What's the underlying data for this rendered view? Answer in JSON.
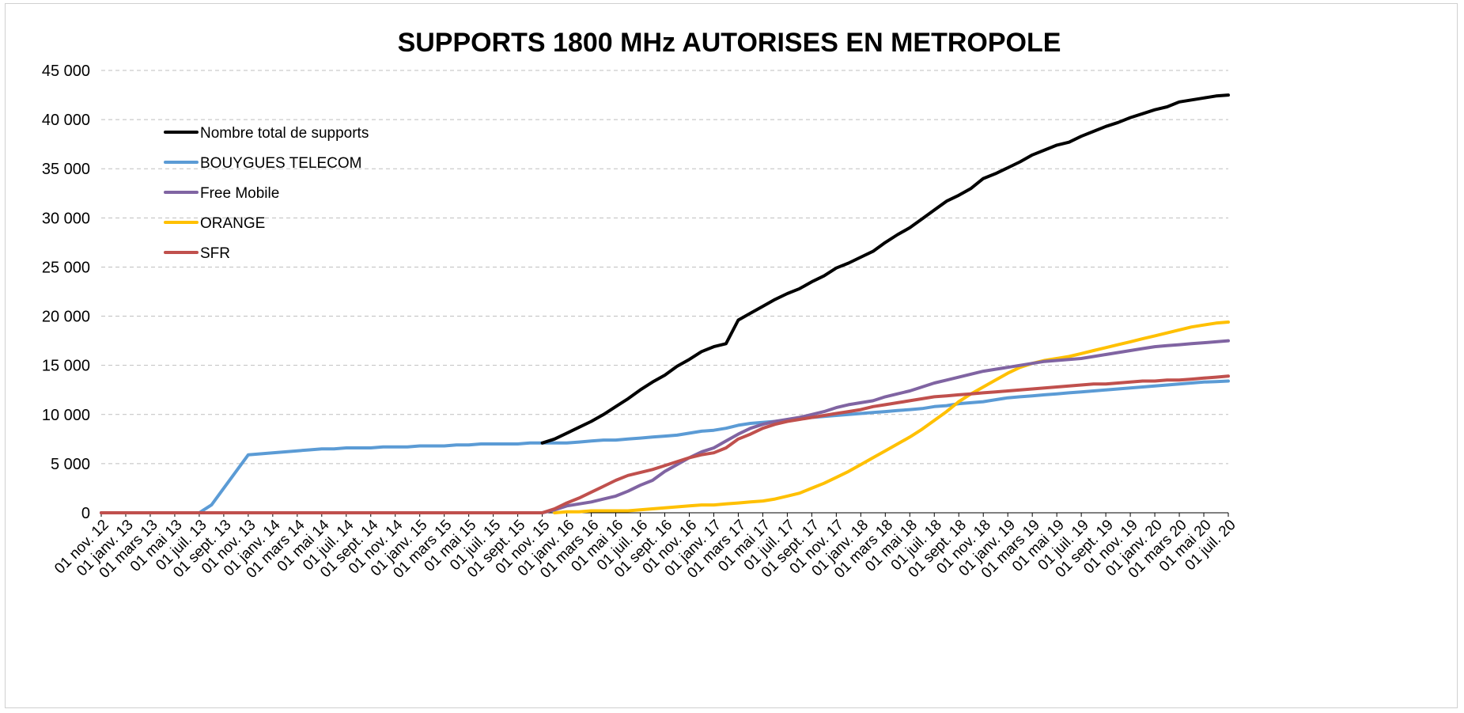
{
  "chart_data": {
    "type": "line",
    "title": "SUPPORTS 1800 MHz AUTORISES EN METROPOLE",
    "xlabel": "",
    "ylabel": "",
    "ylim": [
      0,
      45000
    ],
    "yticks": [
      0,
      5000,
      10000,
      15000,
      20000,
      25000,
      30000,
      35000,
      40000,
      45000
    ],
    "ytick_labels": [
      "0",
      "5 000",
      "10 000",
      "15 000",
      "20 000",
      "25 000",
      "30 000",
      "35 000",
      "40 000",
      "45 000"
    ],
    "grid": true,
    "legend_position": "top-left",
    "x": [
      "01 nov. 12",
      "01 déc. 12",
      "01 janv. 13",
      "01 févr. 13",
      "01 mars 13",
      "01 avr. 13",
      "01 mai 13",
      "01 juin 13",
      "01 juil. 13",
      "01 août 13",
      "01 sept. 13",
      "01 oct. 13",
      "01 nov. 13",
      "01 déc. 13",
      "01 janv. 14",
      "01 févr. 14",
      "01 mars 14",
      "01 avr. 14",
      "01 mai 14",
      "01 juin 14",
      "01 juil. 14",
      "01 août 14",
      "01 sept. 14",
      "01 oct. 14",
      "01 nov. 14",
      "01 déc. 14",
      "01 janv. 15",
      "01 févr. 15",
      "01 mars 15",
      "01 avr. 15",
      "01 mai 15",
      "01 juin 15",
      "01 juil. 15",
      "01 août 15",
      "01 sept. 15",
      "01 oct. 15",
      "01 nov. 15",
      "01 déc. 15",
      "01 janv. 16",
      "01 févr. 16",
      "01 mars 16",
      "01 avr. 16",
      "01 mai 16",
      "01 juin 16",
      "01 juil. 16",
      "01 août 16",
      "01 sept. 16",
      "01 oct. 16",
      "01 nov. 16",
      "01 déc. 16",
      "01 janv. 17",
      "01 févr. 17",
      "01 mars 17",
      "01 avr. 17",
      "01 mai 17",
      "01 juin 17",
      "01 juil. 17",
      "01 août 17",
      "01 sept. 17",
      "01 oct. 17",
      "01 nov. 17",
      "01 déc. 17",
      "01 janv. 18",
      "01 févr. 18",
      "01 mars 18",
      "01 avr. 18",
      "01 mai 18",
      "01 juin 18",
      "01 juil. 18",
      "01 août 18",
      "01 sept. 18",
      "01 oct. 18",
      "01 nov. 18",
      "01 déc. 18",
      "01 janv. 19",
      "01 févr. 19",
      "01 mars 19",
      "01 avr. 19",
      "01 mai 19",
      "01 juin 19",
      "01 juil. 19",
      "01 août 19",
      "01 sept. 19",
      "01 oct. 19",
      "01 nov. 19",
      "01 déc. 19",
      "01 janv. 20",
      "01 févr. 20",
      "01 mars 20",
      "01 avr. 20",
      "01 mai 20",
      "01 juin 20",
      "01 juil. 20"
    ],
    "x_tick_labels": [
      "01 nov. 12",
      "01 janv. 13",
      "01 mars 13",
      "01 mai 13",
      "01 juil. 13",
      "01 sept. 13",
      "01 nov. 13",
      "01 janv. 14",
      "01 mars 14",
      "01 mai 14",
      "01 juil. 14",
      "01 sept. 14",
      "01 nov. 14",
      "01 janv. 15",
      "01 mars 15",
      "01 mai 15",
      "01 juil. 15",
      "01 sept. 15",
      "01 nov. 15",
      "01 janv. 16",
      "01 mars 16",
      "01 mai 16",
      "01 juil. 16",
      "01 sept. 16",
      "01 nov. 16",
      "01 janv. 17",
      "01 mars 17",
      "01 mai 17",
      "01 juil. 17",
      "01 sept. 17",
      "01 nov. 17",
      "01 janv. 18",
      "01 mars 18",
      "01 mai 18",
      "01 juil. 18",
      "01 sept. 18",
      "01 nov. 18",
      "01 janv. 19",
      "01 mars 19",
      "01 mai 19",
      "01 juil. 19",
      "01 sept. 19",
      "01 nov. 19",
      "01 janv. 20",
      "01 mars 20",
      "01 mai 20",
      "01 juil. 20"
    ],
    "series": [
      {
        "name": "Nombre total de supports",
        "color": "#000000",
        "values": [
          0,
          0,
          0,
          0,
          0,
          0,
          0,
          0,
          0,
          0,
          0,
          0,
          0,
          0,
          0,
          0,
          0,
          0,
          0,
          0,
          0,
          0,
          0,
          0,
          0,
          0,
          0,
          0,
          0,
          0,
          0,
          0,
          0,
          0,
          0,
          0,
          7100,
          7500,
          8100,
          8700,
          9300,
          10000,
          10800,
          11600,
          12500,
          13300,
          14000,
          14900,
          15600,
          16400,
          16900,
          17200,
          19600,
          20300,
          21000,
          21700,
          22300,
          22800,
          23500,
          24100,
          24900,
          25400,
          26000,
          26600,
          27500,
          28300,
          29000,
          29900,
          30800,
          31700,
          32300,
          33000,
          34000,
          34500,
          35100,
          35700,
          36400,
          36900,
          37400,
          37700,
          38300,
          38800,
          39300,
          39700,
          40200,
          40600,
          41000,
          41300,
          41800,
          42000,
          42200,
          42400,
          42500
        ],
        "visible_from_index": 36
      },
      {
        "name": "BOUYGUES TELECOM",
        "color": "#5b9bd5",
        "values": [
          0,
          0,
          0,
          0,
          0,
          0,
          0,
          0,
          0,
          800,
          2500,
          4200,
          5900,
          6000,
          6100,
          6200,
          6300,
          6400,
          6500,
          6500,
          6600,
          6600,
          6600,
          6700,
          6700,
          6700,
          6800,
          6800,
          6800,
          6900,
          6900,
          7000,
          7000,
          7000,
          7000,
          7100,
          7100,
          7100,
          7100,
          7200,
          7300,
          7400,
          7400,
          7500,
          7600,
          7700,
          7800,
          7900,
          8100,
          8300,
          8400,
          8600,
          8900,
          9100,
          9200,
          9300,
          9400,
          9600,
          9700,
          9800,
          9900,
          10000,
          10100,
          10200,
          10300,
          10400,
          10500,
          10600,
          10800,
          10900,
          11100,
          11200,
          11300,
          11500,
          11700,
          11800,
          11900,
          12000,
          12100,
          12200,
          12300,
          12400,
          12500,
          12600,
          12700,
          12800,
          12900,
          13000,
          13100,
          13200,
          13300,
          13350,
          13400
        ]
      },
      {
        "name": "Free Mobile",
        "color": "#8064a2",
        "values": [
          0,
          0,
          0,
          0,
          0,
          0,
          0,
          0,
          0,
          0,
          0,
          0,
          0,
          0,
          0,
          0,
          0,
          0,
          0,
          0,
          0,
          0,
          0,
          0,
          0,
          0,
          0,
          0,
          0,
          0,
          0,
          0,
          0,
          0,
          0,
          0,
          0,
          300,
          700,
          900,
          1100,
          1400,
          1700,
          2200,
          2800,
          3300,
          4200,
          4900,
          5600,
          6200,
          6600,
          7300,
          8000,
          8600,
          9000,
          9300,
          9500,
          9700,
          10000,
          10300,
          10700,
          11000,
          11200,
          11400,
          11800,
          12100,
          12400,
          12800,
          13200,
          13500,
          13800,
          14100,
          14400,
          14600,
          14800,
          15000,
          15200,
          15400,
          15500,
          15600,
          15700,
          15900,
          16100,
          16300,
          16500,
          16700,
          16900,
          17000,
          17100,
          17200,
          17300,
          17400,
          17500
        ]
      },
      {
        "name": "ORANGE",
        "color": "#ffc000",
        "values": [
          0,
          0,
          0,
          0,
          0,
          0,
          0,
          0,
          0,
          0,
          0,
          0,
          0,
          0,
          0,
          0,
          0,
          0,
          0,
          0,
          0,
          0,
          0,
          0,
          0,
          0,
          0,
          0,
          0,
          0,
          0,
          0,
          0,
          0,
          0,
          0,
          0,
          0,
          100,
          100,
          200,
          200,
          200,
          200,
          300,
          400,
          500,
          600,
          700,
          800,
          800,
          900,
          1000,
          1100,
          1200,
          1400,
          1700,
          2000,
          2500,
          3000,
          3600,
          4200,
          4900,
          5600,
          6300,
          7000,
          7700,
          8500,
          9400,
          10300,
          11300,
          12100,
          12800,
          13500,
          14200,
          14800,
          15200,
          15500,
          15700,
          15900,
          16200,
          16500,
          16800,
          17100,
          17400,
          17700,
          18000,
          18300,
          18600,
          18900,
          19100,
          19300,
          19400
        ],
        "visible_from_index": 37
      },
      {
        "name": "SFR",
        "color": "#c0504d",
        "values": [
          0,
          0,
          0,
          0,
          0,
          0,
          0,
          0,
          0,
          0,
          0,
          0,
          0,
          0,
          0,
          0,
          0,
          0,
          0,
          0,
          0,
          0,
          0,
          0,
          0,
          0,
          0,
          0,
          0,
          0,
          0,
          0,
          0,
          0,
          0,
          0,
          0,
          400,
          1000,
          1500,
          2100,
          2700,
          3300,
          3800,
          4100,
          4400,
          4800,
          5200,
          5600,
          5900,
          6100,
          6600,
          7500,
          8000,
          8600,
          9000,
          9300,
          9500,
          9700,
          9900,
          10100,
          10300,
          10500,
          10800,
          11000,
          11200,
          11400,
          11600,
          11800,
          11900,
          12000,
          12100,
          12200,
          12300,
          12400,
          12500,
          12600,
          12700,
          12800,
          12900,
          13000,
          13100,
          13100,
          13200,
          13300,
          13400,
          13400,
          13500,
          13500,
          13600,
          13700,
          13800,
          13900
        ]
      }
    ]
  }
}
